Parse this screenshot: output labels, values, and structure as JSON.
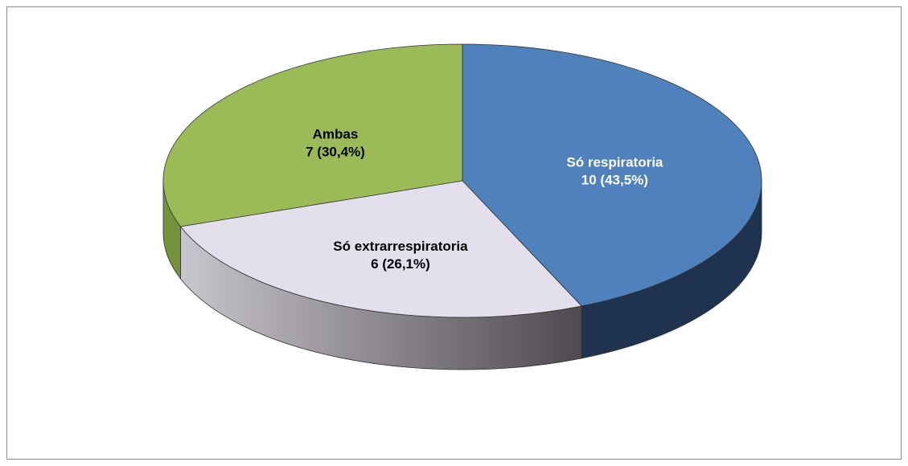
{
  "chart_data": {
    "type": "pie",
    "categories": [
      "Só respiratoria",
      "Só extrarrespiratoria",
      "Ambas"
    ],
    "values": [
      10,
      6,
      7
    ],
    "value_labels": [
      "10 (43,5%)",
      "6 (26,1%)",
      "7 (30,4%)"
    ],
    "colors": [
      "#4f81bd",
      "#e4dfec",
      "#9bbb59"
    ]
  }
}
